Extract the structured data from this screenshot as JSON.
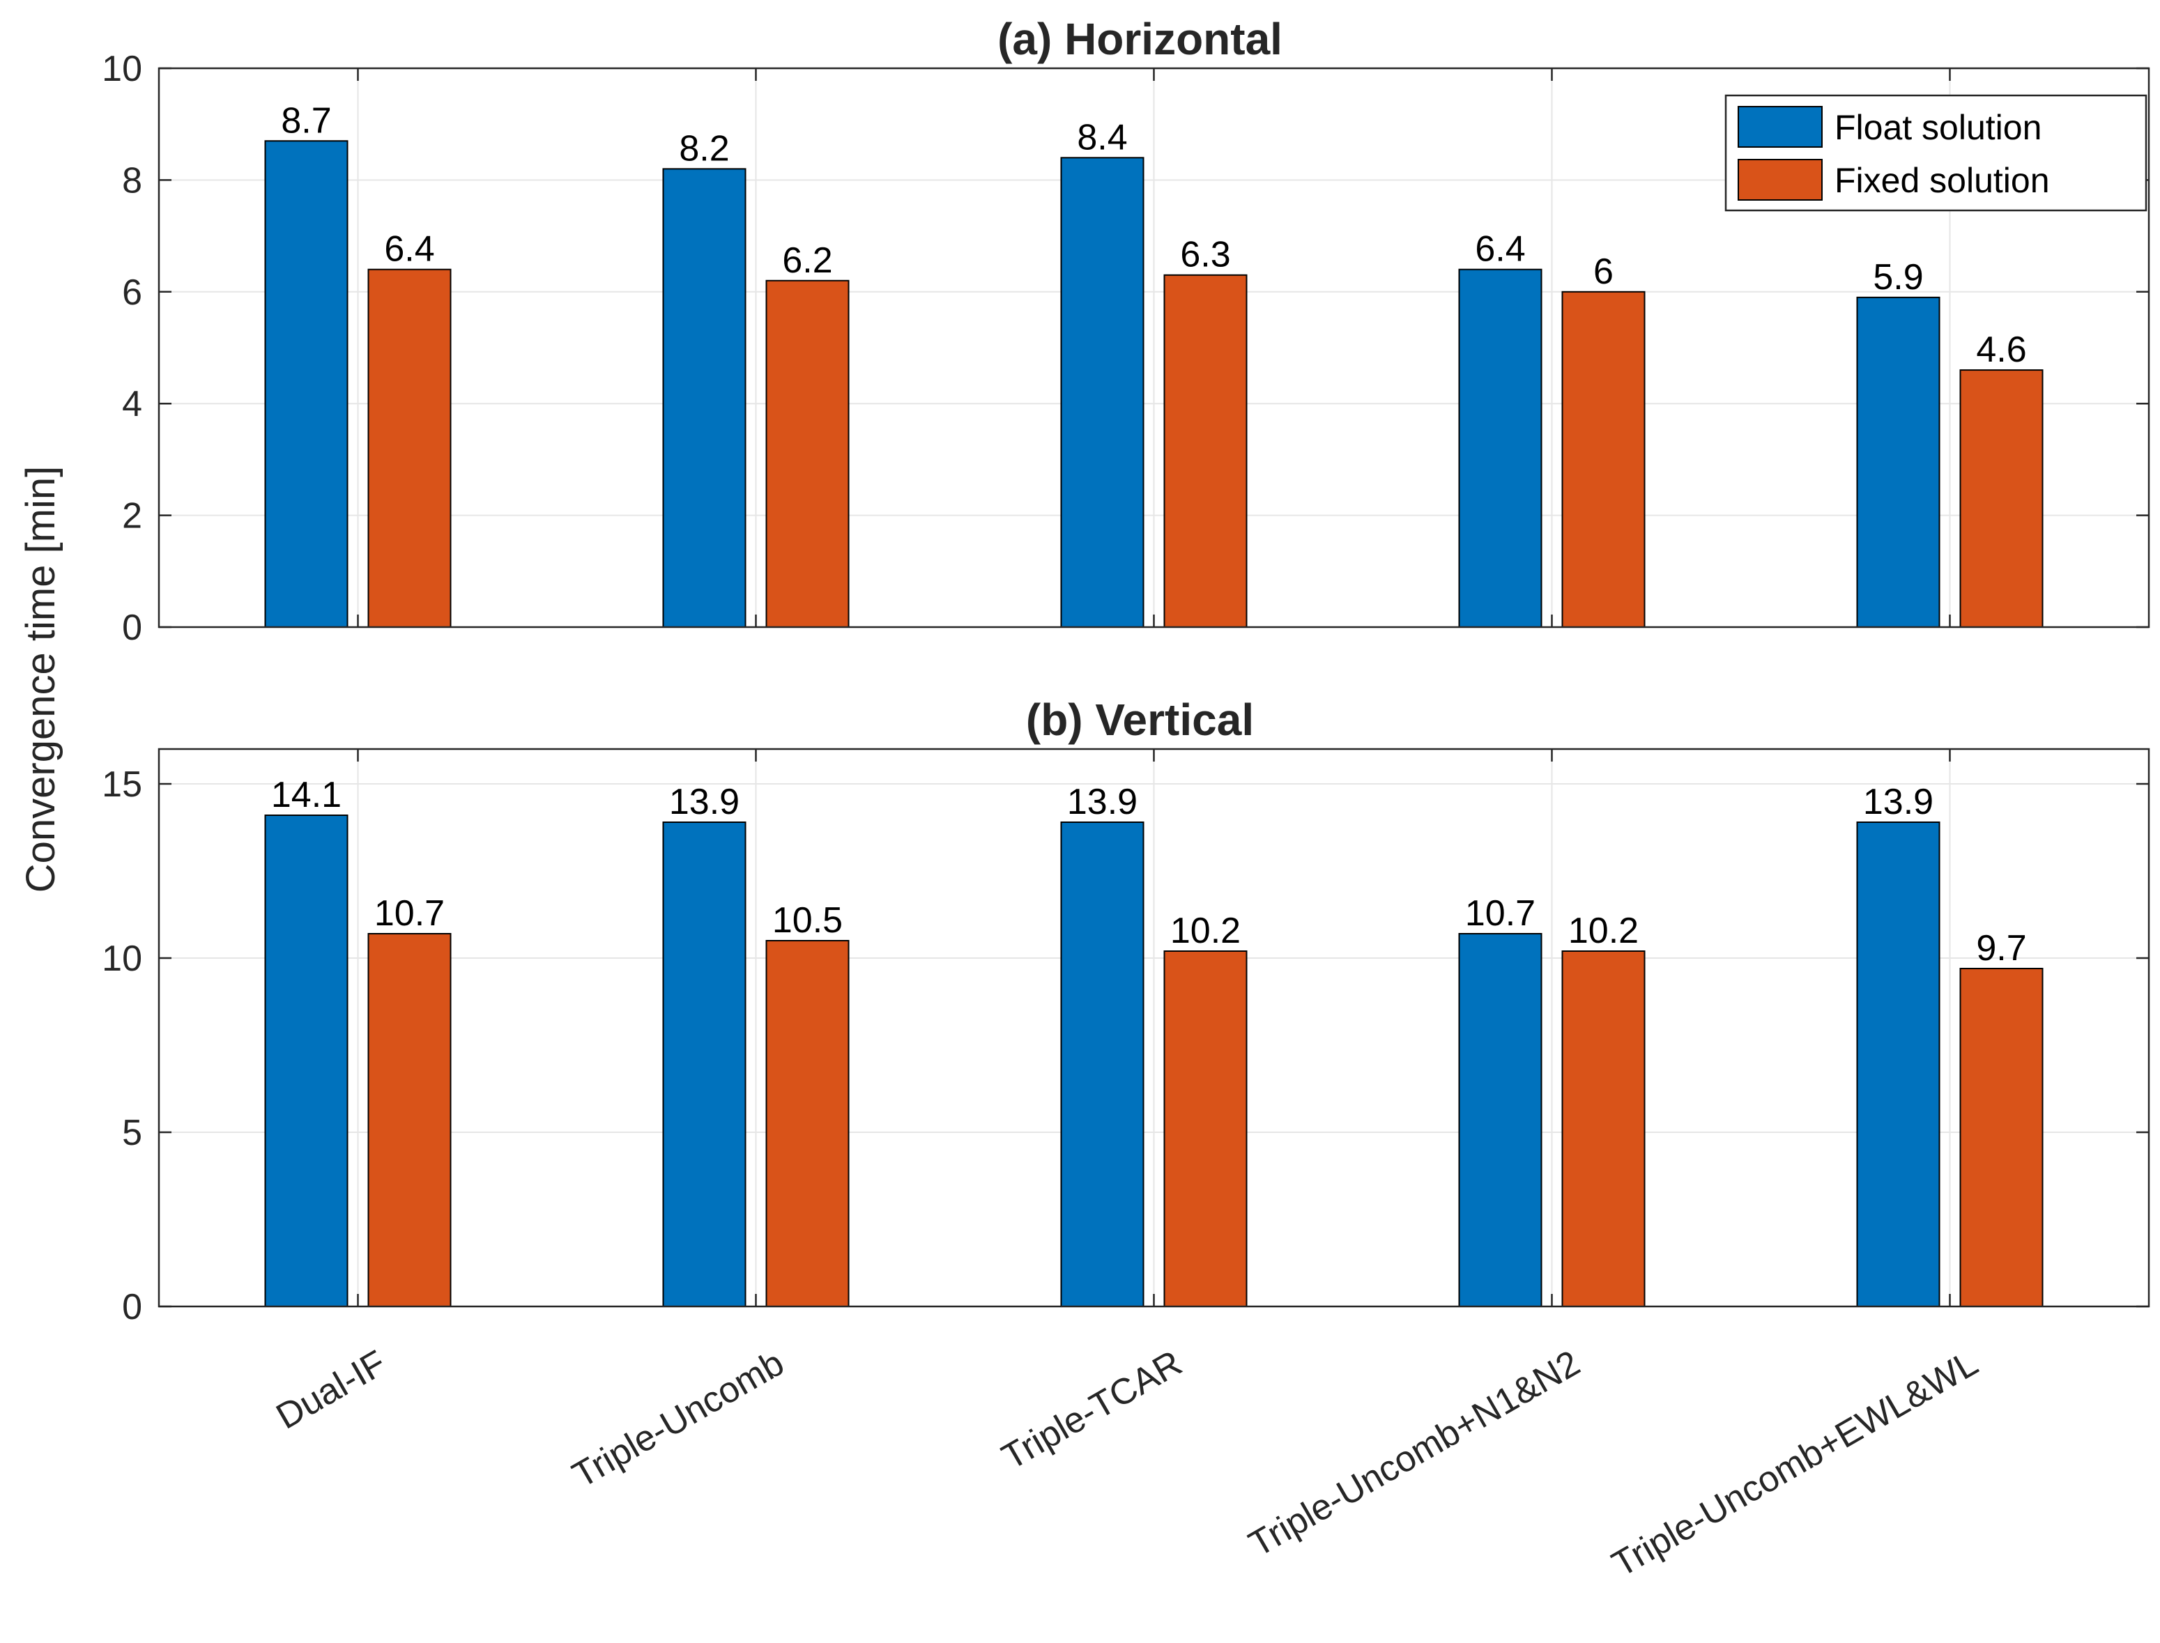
{
  "chart_data": [
    {
      "type": "bar",
      "title": "(a) Horizontal",
      "categories": [
        "Dual-IF",
        "Triple-Uncomb",
        "Triple-TCAR",
        "Triple-Uncomb+N1&N2",
        "Triple-Uncomb+EWL&WL"
      ],
      "series": [
        {
          "name": "Float solution",
          "color": "#0072BD",
          "values": [
            8.7,
            8.2,
            8.4,
            6.4,
            5.9
          ],
          "labels": [
            "8.7",
            "8.2",
            "8.4",
            "6.4",
            "5.9"
          ]
        },
        {
          "name": "Fixed solution",
          "color": "#D95319",
          "values": [
            6.4,
            6.2,
            6.3,
            6.0,
            4.6
          ],
          "labels": [
            "6.4",
            "6.2",
            "6.3",
            "6",
            "4.6"
          ]
        }
      ],
      "ylim": [
        0,
        10
      ],
      "yticks": [
        "0",
        "2",
        "4",
        "6",
        "8",
        "10"
      ],
      "ytick_values": [
        0,
        2,
        4,
        6,
        8,
        10
      ],
      "grid": true,
      "legend": "top-right"
    },
    {
      "type": "bar",
      "title": "(b) Vertical",
      "categories": [
        "Dual-IF",
        "Triple-Uncomb",
        "Triple-TCAR",
        "Triple-Uncomb+N1&N2",
        "Triple-Uncomb+EWL&WL"
      ],
      "series": [
        {
          "name": "Float solution",
          "color": "#0072BD",
          "values": [
            14.1,
            13.9,
            13.9,
            10.7,
            13.9
          ],
          "labels": [
            "14.1",
            "13.9",
            "13.9",
            "10.7",
            "13.9"
          ]
        },
        {
          "name": "Fixed solution",
          "color": "#D95319",
          "values": [
            10.7,
            10.5,
            10.2,
            10.2,
            9.7
          ],
          "labels": [
            "10.7",
            "10.5",
            "10.2",
            "10.2",
            "9.7"
          ]
        }
      ],
      "ylim": [
        0,
        16
      ],
      "yticks": [
        "0",
        "5",
        "10",
        "15"
      ],
      "ytick_values": [
        0,
        5,
        10,
        15
      ],
      "grid": true,
      "legend": "none"
    }
  ],
  "ylabel": "Convergence time [min]",
  "legend": [
    {
      "name": "Float solution",
      "color": "#0072BD"
    },
    {
      "name": "Fixed solution",
      "color": "#D95319"
    }
  ]
}
